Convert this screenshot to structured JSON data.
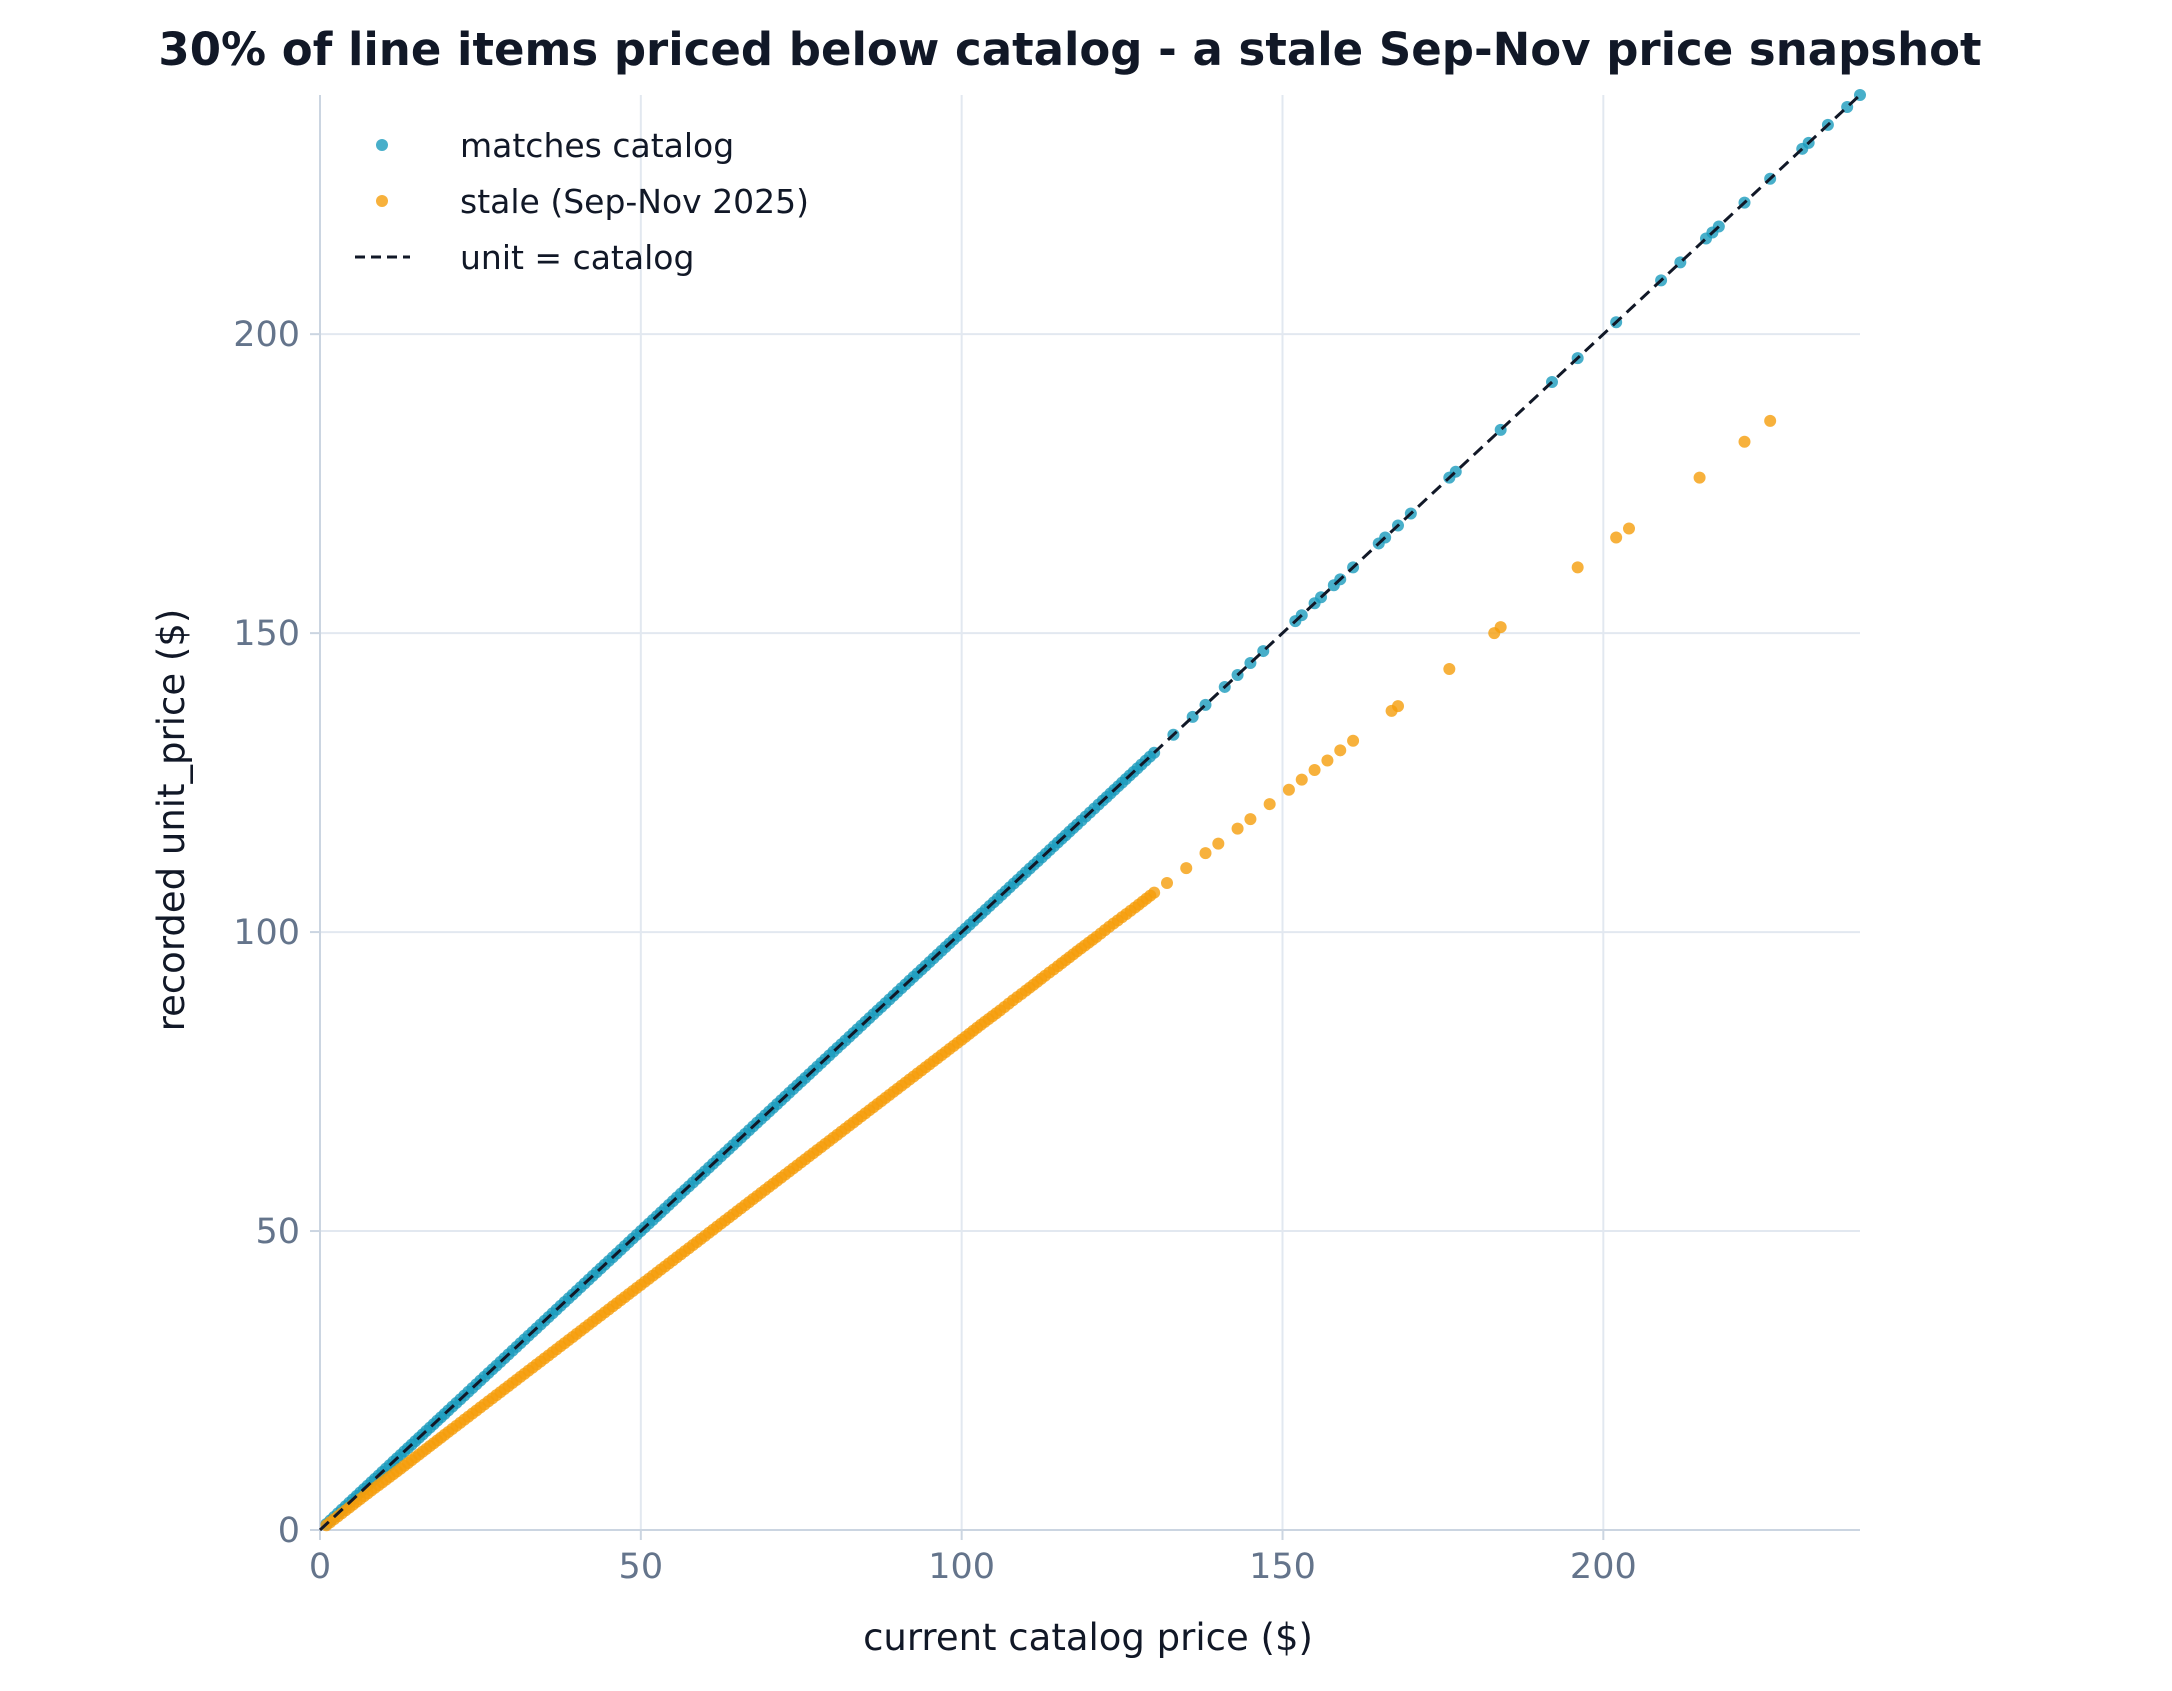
{
  "chart_data": {
    "type": "scatter",
    "title": "30% of line items priced below catalog - a stale Sep-Nov price snapshot",
    "xlabel": "current catalog price ($)",
    "ylabel": "recorded unit_price ($)",
    "xlim": [
      0,
      240
    ],
    "ylim": [
      0,
      240
    ],
    "x_ticks": [
      "0",
      "50",
      "100",
      "150",
      "200"
    ],
    "y_ticks": [
      "0",
      "50",
      "100",
      "150",
      "200"
    ],
    "grid": true,
    "legend_position": "top-left",
    "legend": [
      "matches catalog",
      "stale (Sep-Nov 2025)",
      "unit = catalog"
    ],
    "series": [
      {
        "name": "matches catalog",
        "color": "#1a9bbd",
        "relation": "unit_price = catalog_price",
        "x": [
          1,
          4,
          8,
          12,
          16,
          20,
          25,
          30,
          35,
          40,
          45,
          50,
          55,
          60,
          65,
          70,
          75,
          80,
          85,
          90,
          95,
          100,
          105,
          110,
          115,
          118,
          120,
          122,
          125,
          128,
          130,
          133,
          136,
          138,
          141,
          143,
          145,
          147,
          152,
          153,
          155,
          156,
          158,
          159,
          161,
          165,
          166,
          168,
          170,
          176,
          177,
          184,
          192,
          196,
          202,
          209,
          212,
          216,
          217,
          218,
          222,
          226,
          231,
          232,
          235,
          238,
          240
        ],
        "y": [
          1,
          4,
          8,
          12,
          16,
          20,
          25,
          30,
          35,
          40,
          45,
          50,
          55,
          60,
          65,
          70,
          75,
          80,
          85,
          90,
          95,
          100,
          105,
          110,
          115,
          118,
          120,
          122,
          125,
          128,
          130,
          133,
          136,
          138,
          141,
          143,
          145,
          147,
          152,
          153,
          155,
          156,
          158,
          159,
          161,
          165,
          166,
          168,
          170,
          176,
          177,
          184,
          192,
          196,
          202,
          209,
          212,
          216,
          217,
          218,
          222,
          226,
          231,
          232,
          235,
          238,
          240
        ]
      },
      {
        "name": "stale (Sep-Nov 2025)",
        "color": "#f59e0b",
        "relation": "unit_price ≈ 0.82 × catalog_price",
        "x": [
          1,
          4,
          8,
          12,
          16,
          20,
          25,
          30,
          35,
          40,
          45,
          50,
          55,
          60,
          65,
          70,
          75,
          80,
          85,
          90,
          95,
          100,
          103,
          106,
          108,
          110,
          113,
          115,
          118,
          121,
          123,
          125,
          127,
          130,
          132,
          135,
          138,
          140,
          143,
          145,
          148,
          151,
          153,
          155,
          157,
          159,
          161,
          167,
          168,
          176,
          183,
          184,
          196,
          202,
          204,
          215,
          222,
          226
        ],
        "y": [
          0.8,
          3.3,
          6.6,
          9.8,
          13.1,
          16.4,
          20.5,
          24.6,
          28.7,
          32.8,
          36.9,
          41.0,
          45.1,
          49.2,
          53.3,
          57.4,
          61.5,
          65.6,
          69.7,
          73.8,
          77.9,
          82.0,
          84.5,
          86.9,
          88.6,
          90.2,
          92.7,
          94.3,
          96.8,
          99.2,
          100.9,
          102.5,
          104.1,
          106.6,
          108.2,
          110.7,
          113.2,
          114.8,
          117.3,
          118.9,
          121.4,
          123.8,
          125.5,
          127.1,
          128.7,
          130.4,
          132.0,
          137.0,
          137.8,
          144.0,
          150.0,
          151.0,
          161.0,
          166.0,
          167.5,
          176.0,
          182.0,
          185.5
        ]
      },
      {
        "name": "unit = catalog",
        "color": "#111827",
        "style": "dashed",
        "x": [
          0,
          240
        ],
        "y": [
          0,
          240
        ]
      }
    ]
  }
}
